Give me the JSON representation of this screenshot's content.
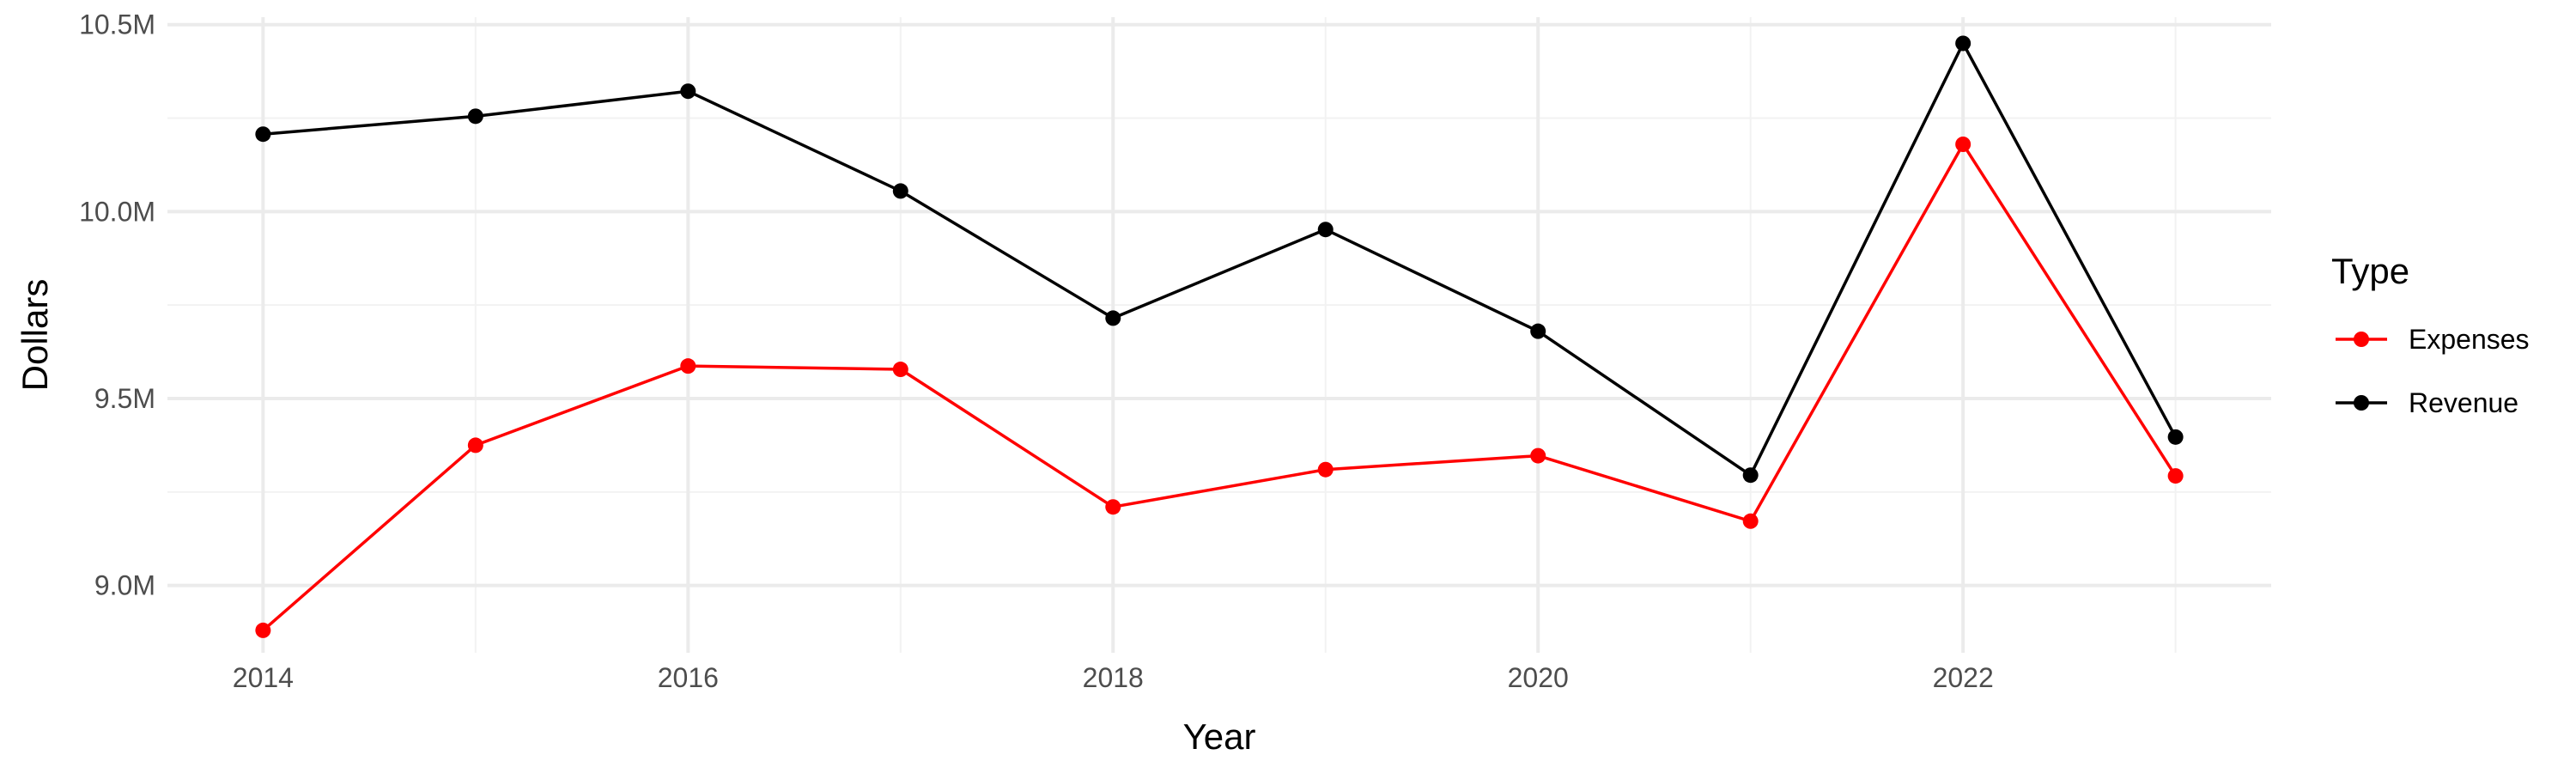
{
  "chart_data": {
    "type": "line",
    "x": [
      2014,
      2015,
      2016,
      2017,
      2018,
      2019,
      2020,
      2021,
      2022,
      2023
    ],
    "x_ticks": [
      2014,
      2016,
      2018,
      2020,
      2022
    ],
    "x_tick_labels": [
      "2014",
      "2016",
      "2018",
      "2020",
      "2022"
    ],
    "xlim": [
      2013.55,
      2023.45
    ],
    "y_ticks": [
      9000000,
      9500000,
      10000000,
      10500000
    ],
    "y_tick_labels": [
      "9.0M",
      "9.5M",
      "10.0M",
      "10.5M"
    ],
    "ylim": [
      8820000,
      10520000
    ],
    "xlabel": "Year",
    "ylabel": "Dollars",
    "legend_title": "Type",
    "legend_position": "right",
    "grid": true,
    "series": [
      {
        "name": "Expenses",
        "color": "#ff0000",
        "values": [
          8880000,
          9375000,
          9587000,
          9578000,
          9210000,
          9310000,
          9347000,
          9172000,
          10180000,
          9293000
        ]
      },
      {
        "name": "Revenue",
        "color": "#000000",
        "values": [
          10207000,
          10255000,
          10322000,
          10055000,
          9715000,
          9952000,
          9680000,
          9295000,
          10450000,
          9397000
        ]
      }
    ]
  }
}
